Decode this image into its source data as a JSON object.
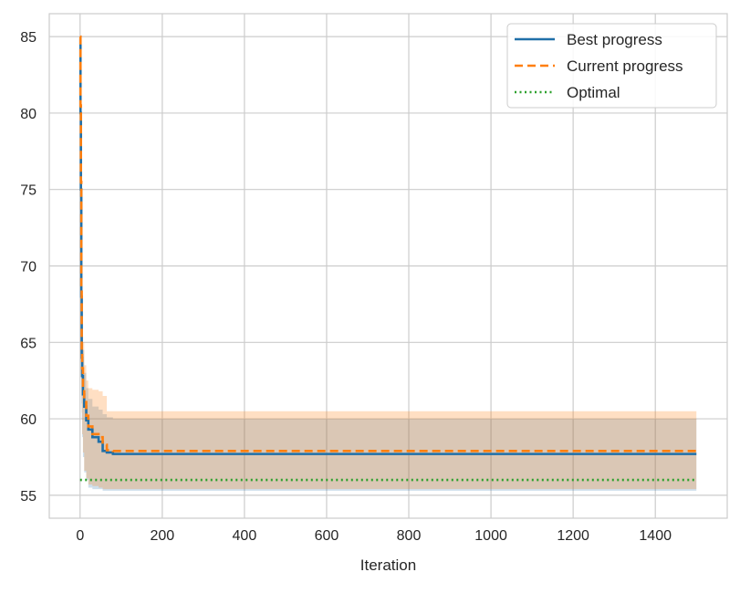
{
  "chart_data": {
    "type": "line",
    "title": "",
    "xlabel": "Iteration",
    "ylabel": "",
    "xlim": [
      -75,
      1575
    ],
    "ylim": [
      53.5,
      86.5
    ],
    "xticks": [
      0,
      200,
      400,
      600,
      800,
      1000,
      1200,
      1400
    ],
    "yticks": [
      55,
      60,
      65,
      70,
      75,
      80,
      85
    ],
    "grid": true,
    "legend_position": "top-right",
    "series": [
      {
        "name": "Best progress",
        "style": "solid",
        "color": "#1f6fa8",
        "x": [
          0,
          1,
          2,
          3,
          4,
          5,
          7,
          10,
          15,
          20,
          30,
          45,
          55,
          65,
          80,
          100,
          1500
        ],
        "y": [
          84.9,
          80.0,
          75.0,
          68.0,
          64.0,
          62.8,
          61.6,
          60.8,
          59.9,
          59.3,
          58.8,
          58.5,
          57.9,
          57.8,
          57.7,
          57.7,
          57.7
        ],
        "band_low": [
          83.5,
          77.0,
          71.0,
          64.0,
          61.0,
          60.0,
          58.8,
          57.5,
          56.5,
          56.0,
          55.5,
          55.4,
          55.4,
          55.3,
          55.3,
          55.3,
          55.3
        ],
        "band_high": [
          85.0,
          82.0,
          78.0,
          71.0,
          66.5,
          65.5,
          64.5,
          63.0,
          62.0,
          61.3,
          60.8,
          60.6,
          60.3,
          60.1,
          60.0,
          60.0,
          60.0
        ]
      },
      {
        "name": "Current progress",
        "style": "dashed",
        "color": "#ff7f0e",
        "x": [
          0,
          1,
          2,
          3,
          4,
          5,
          7,
          10,
          15,
          20,
          30,
          45,
          55,
          65,
          80,
          100,
          1500
        ],
        "y": [
          85.0,
          80.5,
          75.5,
          68.5,
          64.5,
          63.3,
          62.0,
          61.2,
          60.2,
          59.5,
          59.0,
          58.8,
          58.3,
          57.95,
          57.9,
          57.9,
          57.9
        ],
        "band_low": [
          83.5,
          77.5,
          71.5,
          64.5,
          61.5,
          60.4,
          59.0,
          57.8,
          56.6,
          56.1,
          55.7,
          55.6,
          55.5,
          55.4,
          55.4,
          55.4,
          55.4
        ],
        "band_high": [
          85.0,
          82.5,
          78.5,
          71.5,
          67.0,
          66.0,
          65.0,
          63.5,
          62.5,
          62.0,
          61.9,
          61.8,
          61.5,
          60.5,
          60.5,
          60.5,
          60.5
        ]
      },
      {
        "name": "Optimal",
        "style": "dotted",
        "color": "#2ca02c",
        "x": [
          0,
          1500
        ],
        "y": [
          56.0,
          56.0
        ]
      }
    ]
  }
}
